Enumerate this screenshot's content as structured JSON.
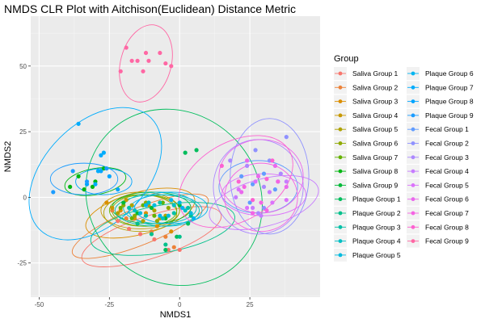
{
  "chart_data": {
    "type": "scatter",
    "title": "NMDS CLR Plot with Aitchison(Euclidean) Distance Metric",
    "xlabel": "NMDS1",
    "ylabel": "NMDS2",
    "xlim": [
      -53,
      50
    ],
    "ylim": [
      -38,
      69
    ],
    "xticks": [
      -50,
      -25,
      0,
      25
    ],
    "yticks": [
      -25,
      0,
      25,
      50
    ],
    "grid": true,
    "ellipses": true,
    "legend": {
      "title": "Group",
      "position": "right",
      "columns": 2
    },
    "series": [
      {
        "name": "Saliva Group 1",
        "color": "#F8766D",
        "points": [
          [
            -22,
            -9
          ],
          [
            -18,
            -12
          ],
          [
            -14,
            -14
          ],
          [
            -9,
            -16
          ],
          [
            -4,
            -20
          ],
          [
            0,
            -20
          ]
        ],
        "ellipse": {
          "cx": -10,
          "cy": -15,
          "rx": 26,
          "ry": 8,
          "angle": -18
        }
      },
      {
        "name": "Saliva Group 2",
        "color": "#EC8239",
        "points": [
          [
            -24,
            -5
          ],
          [
            -19,
            -8
          ],
          [
            -15,
            -10
          ],
          [
            -10,
            -13
          ],
          [
            -5,
            -15
          ],
          [
            -2,
            -19
          ]
        ],
        "ellipse": {
          "cx": -14,
          "cy": -11,
          "rx": 26,
          "ry": 7,
          "angle": -22
        }
      },
      {
        "name": "Saliva Group 3",
        "color": "#DB8E00",
        "points": [
          [
            -26,
            -2
          ],
          [
            -21,
            -5
          ],
          [
            -16,
            -8
          ],
          [
            -12,
            -6
          ],
          [
            -8,
            -11
          ],
          [
            -3,
            -13
          ]
        ],
        "ellipse": {
          "cx": -14,
          "cy": -6,
          "rx": 20,
          "ry": 8,
          "angle": -15
        }
      },
      {
        "name": "Saliva Group 4",
        "color": "#C79800",
        "points": [
          [
            -24,
            -4
          ],
          [
            -19,
            -1
          ],
          [
            -15,
            -6
          ],
          [
            -11,
            -3
          ],
          [
            -7,
            -8
          ]
        ],
        "ellipse": {
          "cx": -14,
          "cy": -5,
          "rx": 14,
          "ry": 7,
          "angle": 0
        }
      },
      {
        "name": "Saliva Group 5",
        "color": "#AEA200",
        "points": [
          [
            -22,
            -6
          ],
          [
            -17,
            -3
          ],
          [
            -13,
            -9
          ],
          [
            -9,
            -5
          ],
          [
            -5,
            -7
          ]
        ],
        "ellipse": {
          "cx": -14,
          "cy": -6,
          "rx": 13,
          "ry": 7,
          "angle": 0
        }
      },
      {
        "name": "Saliva Group 6",
        "color": "#8FAA00",
        "points": [
          [
            -20,
            -3
          ],
          [
            -16,
            -7
          ],
          [
            -12,
            -2
          ],
          [
            -8,
            -9
          ],
          [
            -4,
            -4
          ]
        ],
        "ellipse": {
          "cx": -12,
          "cy": -5,
          "rx": 12,
          "ry": 6,
          "angle": 0
        }
      },
      {
        "name": "Saliva Group 7",
        "color": "#64B200",
        "points": [
          [
            -21,
            -4
          ],
          [
            -17,
            -8
          ],
          [
            -13,
            -3
          ],
          [
            -9,
            -7
          ],
          [
            -6,
            -2
          ]
        ],
        "ellipse": {
          "cx": -13,
          "cy": -5,
          "rx": 12,
          "ry": 6,
          "angle": 0
        }
      },
      {
        "name": "Saliva Group 8",
        "color": "#00B712",
        "points": [
          [
            -39,
            4
          ],
          [
            -36,
            8
          ],
          [
            -34,
            3
          ],
          [
            -30,
            6
          ],
          [
            -27,
            11
          ],
          [
            -31,
            4
          ]
        ],
        "ellipse": {
          "cx": -30,
          "cy": 6,
          "rx": 11,
          "ry": 5,
          "angle": -10
        }
      },
      {
        "name": "Saliva Group 9",
        "color": "#00BA38",
        "points": [
          [
            -20,
            -2
          ],
          [
            -15,
            -6
          ],
          [
            -10,
            -4
          ],
          [
            -5,
            -8
          ],
          [
            0,
            -3
          ]
        ],
        "ellipse": {
          "cx": -10,
          "cy": -4,
          "rx": 14,
          "ry": 6,
          "angle": 0
        }
      },
      {
        "name": "Plaque Group 1",
        "color": "#00BD5C",
        "points": [
          [
            2,
            17
          ],
          [
            6,
            18
          ],
          [
            3,
            -10
          ],
          [
            -1,
            -15
          ],
          [
            -5,
            -20
          ]
        ],
        "ellipse": {
          "cx": -2,
          "cy": 0,
          "rx": 30,
          "ry": 35,
          "angle": -45
        }
      },
      {
        "name": "Plaque Group 2",
        "color": "#00C08B",
        "points": [
          [
            -15,
            -10
          ],
          [
            -10,
            -14
          ],
          [
            -5,
            -18
          ],
          [
            0,
            -15
          ],
          [
            4,
            -7
          ]
        ],
        "ellipse": {
          "cx": -6,
          "cy": -12,
          "rx": 26,
          "ry": 9,
          "angle": -10
        }
      },
      {
        "name": "Plaque Group 3",
        "color": "#00C1A7",
        "points": [
          [
            -18,
            -4
          ],
          [
            -12,
            -7
          ],
          [
            -7,
            -2
          ],
          [
            -2,
            -6
          ],
          [
            3,
            -4
          ]
        ],
        "ellipse": {
          "cx": -8,
          "cy": -5,
          "rx": 15,
          "ry": 6,
          "angle": 0
        }
      },
      {
        "name": "Plaque Group 4",
        "color": "#00BFC4",
        "points": [
          [
            -16,
            -5
          ],
          [
            -11,
            -2
          ],
          [
            -6,
            -8
          ],
          [
            -2,
            -3
          ],
          [
            2,
            -5
          ]
        ],
        "ellipse": {
          "cx": -7,
          "cy": -4,
          "rx": 13,
          "ry": 6,
          "angle": 0
        }
      },
      {
        "name": "Plaque Group 5",
        "color": "#00BADE",
        "points": [
          [
            -14,
            -6
          ],
          [
            -9,
            -3
          ],
          [
            -4,
            -7
          ],
          [
            0,
            -2
          ],
          [
            4,
            -6
          ]
        ],
        "ellipse": {
          "cx": -5,
          "cy": -5,
          "rx": 13,
          "ry": 6,
          "angle": 0
        }
      },
      {
        "name": "Plaque Group 6",
        "color": "#00B4F0",
        "points": [
          [
            -12,
            -3
          ],
          [
            -7,
            -7
          ],
          [
            -3,
            -1
          ],
          [
            1,
            -4
          ],
          [
            5,
            -8
          ]
        ],
        "ellipse": {
          "cx": -3,
          "cy": -4,
          "rx": 13,
          "ry": 6,
          "angle": 0
        }
      },
      {
        "name": "Plaque Group 7",
        "color": "#00ACFC",
        "points": [
          [
            -28,
            16
          ],
          [
            -27,
            17
          ],
          [
            -36,
            28
          ],
          [
            -30,
            5
          ],
          [
            -29,
            10
          ]
        ],
        "ellipse": {
          "cx": -30,
          "cy": 9,
          "rx": 18,
          "ry": 30,
          "angle": 45
        }
      },
      {
        "name": "Plaque Group 8",
        "color": "#00A4FF",
        "points": [
          [
            -33,
            5
          ],
          [
            -28,
            10
          ],
          [
            -25,
            8
          ],
          [
            -22,
            3
          ]
        ],
        "ellipse": {
          "cx": -27,
          "cy": 6,
          "rx": 10,
          "ry": 5,
          "angle": 0
        }
      },
      {
        "name": "Plaque Group 9",
        "color": "#1B9CFF",
        "points": [
          [
            -45,
            2
          ],
          [
            -38,
            10
          ],
          [
            -33,
            6
          ],
          [
            -26,
            11
          ]
        ],
        "ellipse": {
          "cx": -34,
          "cy": 7,
          "rx": 12,
          "ry": 6,
          "angle": 0
        }
      },
      {
        "name": "Fecal Group 1",
        "color": "#619CFF",
        "points": [
          [
            22,
            8
          ],
          [
            26,
            5
          ],
          [
            30,
            9
          ],
          [
            34,
            3
          ],
          [
            25,
            -2
          ]
        ],
        "ellipse": {
          "cx": 28,
          "cy": 4,
          "rx": 14,
          "ry": 10,
          "angle": 0
        }
      },
      {
        "name": "Fecal Group 2",
        "color": "#8F91FF",
        "points": [
          [
            27,
            18
          ],
          [
            32,
            14
          ],
          [
            38,
            23
          ],
          [
            35,
            6
          ],
          [
            30,
            -4
          ]
        ],
        "ellipse": {
          "cx": 32,
          "cy": 8,
          "rx": 14,
          "ry": 22,
          "angle": 0
        }
      },
      {
        "name": "Fecal Group 3",
        "color": "#AC88FF",
        "points": [
          [
            18,
            14
          ],
          [
            24,
            12
          ],
          [
            30,
            4
          ],
          [
            36,
            9
          ],
          [
            28,
            -6
          ]
        ],
        "ellipse": {
          "cx": 28,
          "cy": 4,
          "rx": 16,
          "ry": 18,
          "angle": 0
        }
      },
      {
        "name": "Fecal Group 4",
        "color": "#C77CFF",
        "points": [
          [
            20,
            0
          ],
          [
            26,
            -4
          ],
          [
            32,
            2
          ],
          [
            38,
            6
          ],
          [
            29,
            -7
          ]
        ],
        "ellipse": {
          "cx": 30,
          "cy": -2,
          "rx": 20,
          "ry": 9,
          "angle": -15
        }
      },
      {
        "name": "Fecal Group 5",
        "color": "#DB72FB",
        "points": [
          [
            21,
            3
          ],
          [
            27,
            6
          ],
          [
            33,
            -2
          ],
          [
            38,
            -1
          ],
          [
            24,
            -4
          ]
        ],
        "ellipse": {
          "cx": 30,
          "cy": 1,
          "rx": 15,
          "ry": 8,
          "angle": 0
        }
      },
      {
        "name": "Fecal Group 6",
        "color": "#EA68ED",
        "points": [
          [
            24,
            14
          ],
          [
            28,
            8
          ],
          [
            34,
            12
          ],
          [
            38,
            4
          ],
          [
            22,
            2
          ]
        ],
        "ellipse": {
          "cx": 29,
          "cy": 8,
          "rx": 15,
          "ry": 14,
          "angle": 0
        }
      },
      {
        "name": "Fecal Group 7",
        "color": "#F564E3",
        "points": [
          [
            23,
            4
          ],
          [
            29,
            -2
          ],
          [
            35,
            6
          ],
          [
            26,
            -6
          ],
          [
            31,
            -5
          ]
        ],
        "ellipse": {
          "cx": 29,
          "cy": 0,
          "rx": 13,
          "ry": 13,
          "angle": 0
        }
      },
      {
        "name": "Fecal Group 8",
        "color": "#FD61D1",
        "points": [
          [
            15,
            12
          ],
          [
            21,
            6
          ],
          [
            26,
            -1
          ],
          [
            31,
            7
          ],
          [
            33,
            14
          ]
        ],
        "ellipse": {
          "cx": 20,
          "cy": 6,
          "rx": 22,
          "ry": 15,
          "angle": -30
        }
      },
      {
        "name": "Fecal Group 9",
        "color": "#FF67A4",
        "points": [
          [
            -19,
            57
          ],
          [
            -21,
            48
          ],
          [
            -15,
            52
          ],
          [
            -17,
            52
          ],
          [
            -13,
            48
          ],
          [
            -12,
            55
          ],
          [
            -11,
            52
          ],
          [
            -7,
            55
          ],
          [
            -5,
            51
          ],
          [
            -3,
            50
          ]
        ],
        "ellipse": {
          "cx": -12,
          "cy": 51,
          "rx": 9,
          "ry": 15,
          "angle": 15
        }
      }
    ]
  }
}
